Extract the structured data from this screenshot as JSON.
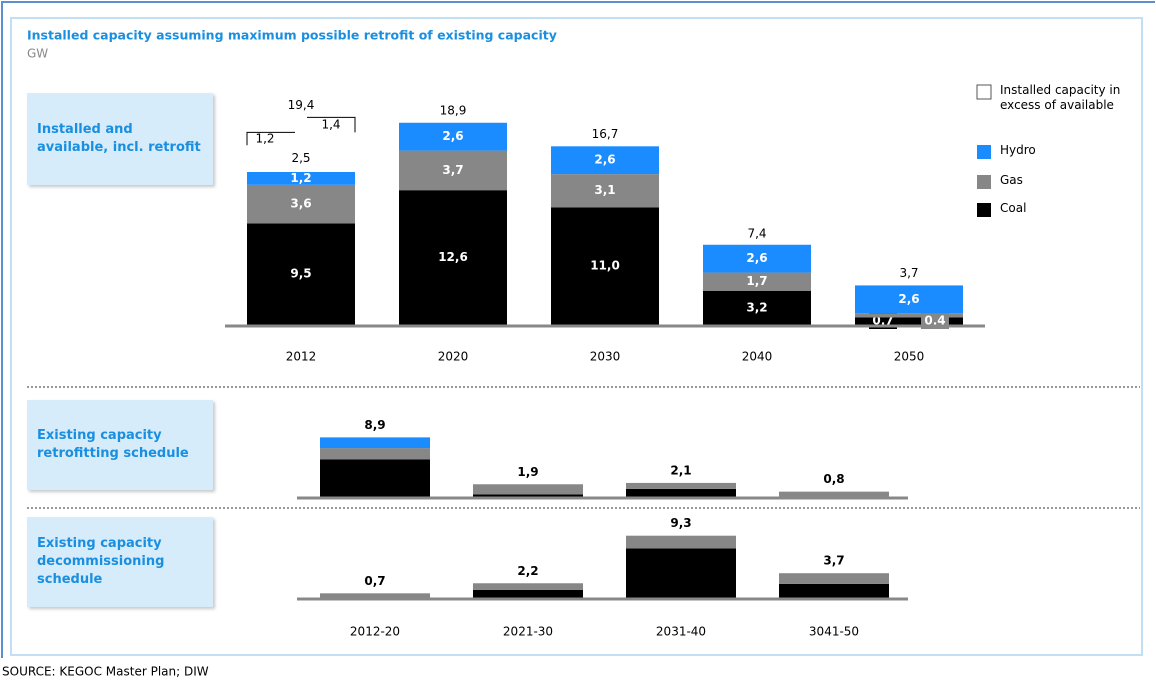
{
  "title": "Installed capacity assuming maximum possible retrofit of existing capacity",
  "subtitle": "GW",
  "source": "SOURCE: KEGOC Master Plan; DIW",
  "chart_data": [
    {
      "type": "bar",
      "stacked": true,
      "label": "Installed and available, incl. retrofit",
      "categories": [
        "2012",
        "2020",
        "2030",
        "2040",
        "2050"
      ],
      "ylim": [
        0,
        20
      ],
      "series": [
        {
          "name": "Coal",
          "color": "#000000",
          "values": [
            9.5,
            12.6,
            11.0,
            3.2,
            0.7
          ],
          "value_labels": [
            "9,5",
            "12,6",
            "11,0",
            "3,2",
            "0,7"
          ]
        },
        {
          "name": "Gas",
          "color": "#878787",
          "values": [
            3.6,
            3.7,
            3.1,
            1.7,
            0.4
          ],
          "value_labels": [
            "3,6",
            "3,7",
            "3,1",
            "1,7",
            "0,4"
          ]
        },
        {
          "name": "Hydro",
          "color": "#1a8cff",
          "values": [
            1.2,
            2.6,
            2.6,
            2.6,
            2.6
          ],
          "value_labels": [
            "1,2",
            "2,6",
            "2,6",
            "2,6",
            "2,6"
          ]
        },
        {
          "name": "Installed capacity in excess of available",
          "color": "#ffffff",
          "values": [
            [
              2.5,
              1.2,
              1.4
            ],
            null,
            null,
            null,
            null
          ],
          "value_labels": [
            [
              "2,5",
              "1,2",
              "1,4"
            ],
            null,
            null,
            null,
            null
          ]
        }
      ],
      "totals": [
        19.4,
        18.9,
        16.7,
        7.4,
        3.7
      ],
      "total_labels": [
        "19,4",
        "18,9",
        "16,7",
        "7,4",
        "3,7"
      ]
    },
    {
      "type": "bar",
      "stacked": true,
      "label": "Existing capacity retrofitting schedule",
      "ylim": [
        0,
        10
      ],
      "series": [
        {
          "color": "#000000",
          "values": [
            5.6,
            0.4,
            1.2,
            0
          ]
        },
        {
          "color": "#878787",
          "values": [
            1.7,
            1.5,
            0.9,
            0.8
          ]
        },
        {
          "color": "#1a8cff",
          "values": [
            1.6,
            0,
            0,
            0
          ]
        }
      ],
      "totals": [
        8.9,
        1.9,
        2.1,
        0.8
      ],
      "total_labels": [
        "8,9",
        "1,9",
        "2,1",
        "0,8"
      ]
    },
    {
      "type": "bar",
      "stacked": true,
      "label": "Existing capacity decommissioning schedule",
      "categories": [
        "2012-20",
        "2021-30",
        "2031-40",
        "3041-50"
      ],
      "ylim": [
        0,
        10
      ],
      "series": [
        {
          "color": "#000000",
          "values": [
            0,
            1.2,
            7.4,
            2.1
          ]
        },
        {
          "color": "#878787",
          "values": [
            0.7,
            1.0,
            1.9,
            1.6
          ]
        }
      ],
      "totals": [
        0.7,
        2.2,
        9.3,
        3.7
      ],
      "total_labels": [
        "0,7",
        "2,2",
        "9,3",
        "3,7"
      ]
    }
  ]
}
